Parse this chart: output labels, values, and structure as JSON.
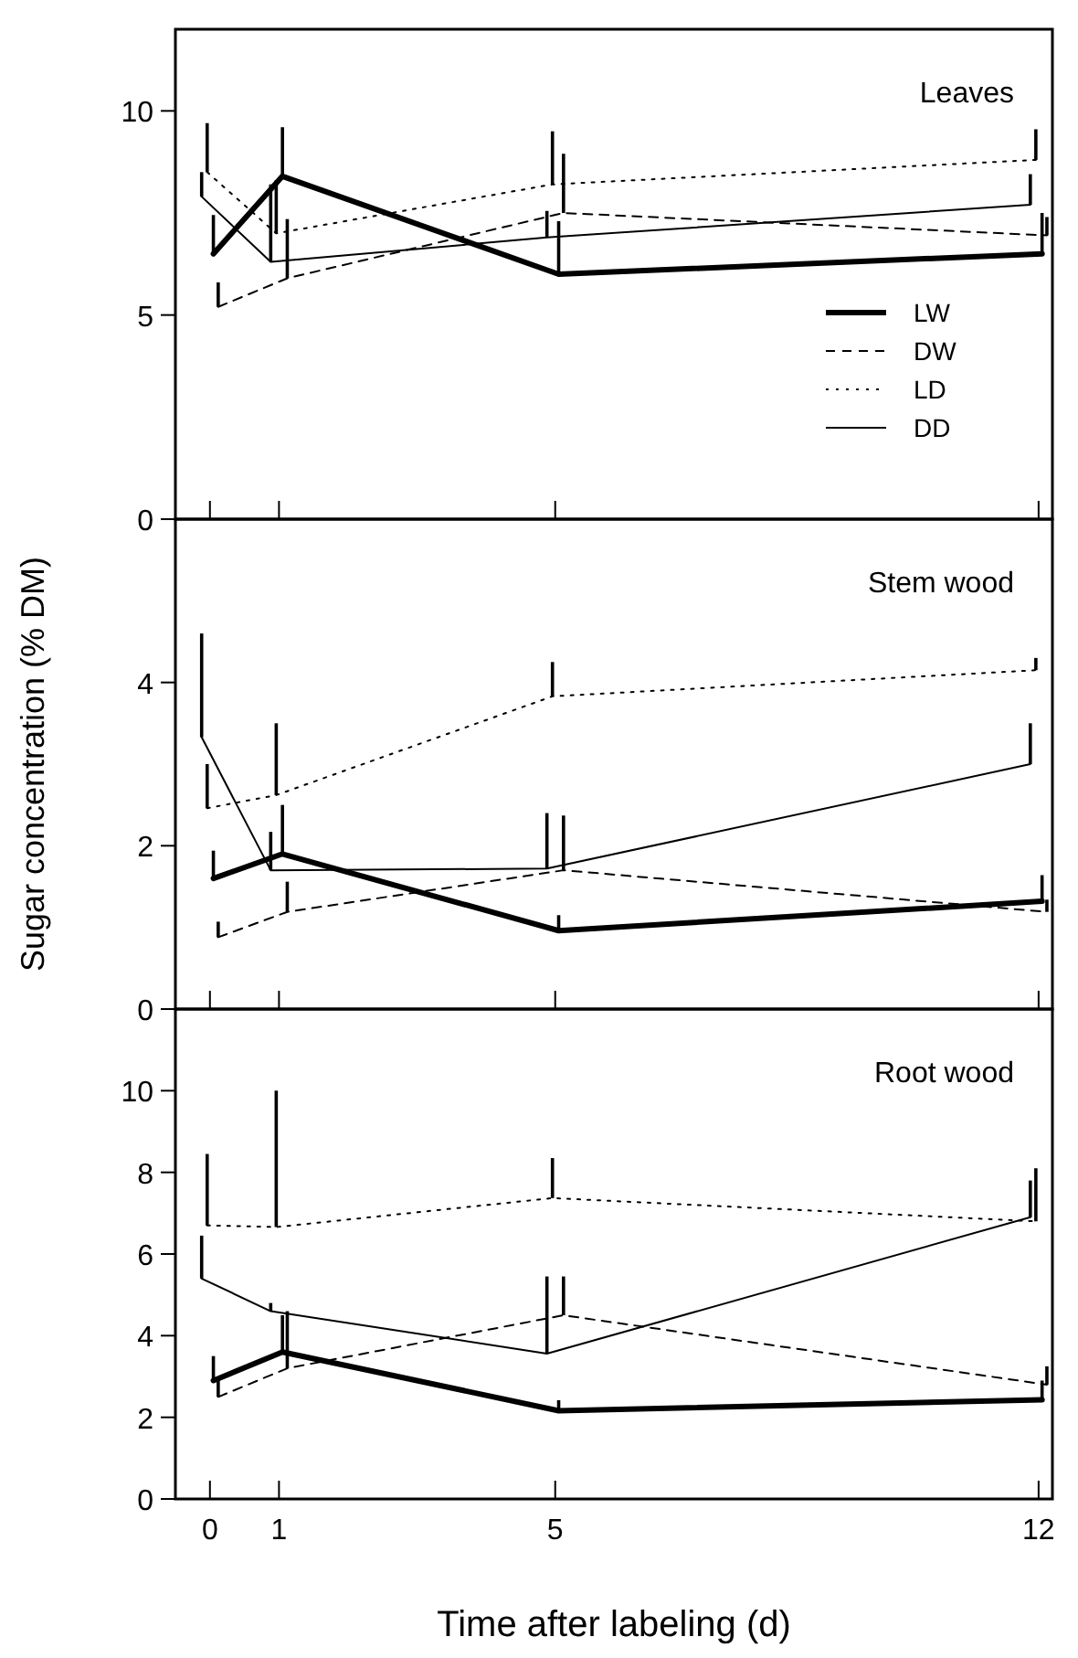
{
  "chart_data": [
    {
      "type": "line",
      "title": "Leaves",
      "xlim": [
        -0.5,
        12.2
      ],
      "xticks": [
        {
          "value": 0,
          "label": null
        },
        {
          "value": 1,
          "label": null
        },
        {
          "value": 5,
          "label": null
        },
        {
          "value": 12,
          "label": null
        }
      ],
      "ylim": [
        0,
        12
      ],
      "yticks": [
        0,
        5,
        10
      ],
      "tick_labels": "y",
      "legend": "right",
      "marker": "none",
      "series": [
        {
          "name": "LW",
          "color": "#000000",
          "line_style": "solid",
          "x": [
            0.05,
            1.05,
            5.05,
            12.05
          ],
          "values": [
            6.5,
            8.4,
            6.0,
            6.5
          ],
          "errors": [
            [
              6.5,
              7.45
            ],
            [
              8.4,
              9.6
            ],
            [
              6.0,
              7.3
            ],
            [
              6.5,
              7.5
            ]
          ]
        },
        {
          "name": "DW",
          "color": "#000000",
          "line_style": "dashed",
          "x": [
            0.12,
            1.12,
            5.12,
            12.12
          ],
          "values": [
            5.2,
            5.9,
            7.5,
            6.95
          ],
          "errors": [
            [
              5.2,
              5.8
            ],
            [
              5.9,
              7.35
            ],
            [
              7.5,
              8.95
            ],
            [
              6.95,
              7.4
            ]
          ]
        },
        {
          "name": "LD",
          "color": "#000000",
          "line_style": "dotted",
          "x": [
            -0.04,
            0.96,
            4.96,
            11.96
          ],
          "values": [
            8.5,
            7.0,
            8.2,
            8.8
          ],
          "errors": [
            [
              8.5,
              9.7
            ],
            [
              7.0,
              8.3
            ],
            [
              8.2,
              9.5
            ],
            [
              8.8,
              9.55
            ]
          ]
        },
        {
          "name": "DD",
          "color": "#000000",
          "line_style": "solid",
          "x": [
            -0.12,
            0.88,
            4.88,
            11.88
          ],
          "values": [
            7.9,
            6.3,
            6.9,
            7.7
          ],
          "errors": [
            [
              7.9,
              8.5
            ],
            [
              6.3,
              8.2
            ],
            [
              6.9,
              7.55
            ],
            [
              7.7,
              8.45
            ]
          ]
        }
      ]
    },
    {
      "type": "line",
      "title": "Stem wood",
      "ylabel": "Sugar concentration (% DM)",
      "xlim": [
        -0.5,
        12.2
      ],
      "xticks": [
        {
          "value": 0,
          "label": null
        },
        {
          "value": 1,
          "label": null
        },
        {
          "value": 5,
          "label": null
        },
        {
          "value": 12,
          "label": null
        }
      ],
      "ylim": [
        0,
        6
      ],
      "yticks": [
        0,
        2,
        4
      ],
      "tick_labels": "y",
      "marker": "none",
      "series": [
        {
          "color": "#000000",
          "line_style": "solid",
          "x": [
            0.05,
            1.05,
            5.05,
            12.05
          ],
          "values": [
            1.6,
            1.9,
            0.96,
            1.32
          ],
          "errors": [
            [
              1.6,
              1.94
            ],
            [
              1.9,
              2.5
            ],
            [
              0.96,
              1.15
            ],
            [
              1.32,
              1.64
            ]
          ]
        },
        {
          "color": "#000000",
          "line_style": "dashed",
          "x": [
            0.12,
            1.12,
            5.12,
            12.12
          ],
          "values": [
            0.88,
            1.19,
            1.7,
            1.19
          ],
          "errors": [
            [
              0.88,
              1.07
            ],
            [
              1.19,
              1.56
            ],
            [
              1.7,
              2.37
            ],
            [
              1.19,
              1.34
            ]
          ]
        },
        {
          "color": "#000000",
          "line_style": "dotted",
          "x": [
            -0.04,
            0.96,
            4.96,
            11.96
          ],
          "values": [
            2.46,
            2.62,
            3.83,
            4.15
          ],
          "errors": [
            [
              2.46,
              3.0
            ],
            [
              2.62,
              3.5
            ],
            [
              3.83,
              4.25
            ],
            [
              4.15,
              4.3
            ]
          ]
        },
        {
          "color": "#000000",
          "line_style": "solid",
          "x": [
            -0.12,
            0.88,
            4.88,
            11.88
          ],
          "values": [
            3.33,
            1.7,
            1.72,
            3.0
          ],
          "errors": [
            [
              3.33,
              4.6
            ],
            [
              1.7,
              2.17
            ],
            [
              1.72,
              2.4
            ],
            [
              3.0,
              3.5
            ]
          ]
        }
      ]
    },
    {
      "type": "line",
      "title": "Root wood",
      "xlabel": "Time after labeling (d)",
      "xlim": [
        -0.5,
        12.2
      ],
      "xticks": [
        0,
        1,
        5,
        12
      ],
      "ylim": [
        0,
        12
      ],
      "yticks": [
        0,
        2,
        4,
        6,
        8,
        10
      ],
      "marker": "none",
      "series": [
        {
          "color": "#000000",
          "line_style": "solid",
          "x": [
            0.05,
            1.05,
            5.05,
            12.05
          ],
          "values": [
            2.9,
            3.6,
            2.16,
            2.43
          ],
          "errors": [
            [
              2.9,
              3.5
            ],
            [
              3.6,
              4.5
            ],
            [
              2.16,
              2.42
            ],
            [
              2.43,
              2.9
            ]
          ]
        },
        {
          "color": "#000000",
          "line_style": "dashed",
          "x": [
            0.12,
            1.12,
            5.12,
            12.12
          ],
          "values": [
            2.5,
            3.2,
            4.5,
            2.8
          ],
          "errors": [
            [
              2.5,
              2.9
            ],
            [
              3.2,
              4.6
            ],
            [
              4.5,
              5.45
            ],
            [
              2.8,
              3.25
            ]
          ]
        },
        {
          "color": "#000000",
          "line_style": "dotted",
          "x": [
            -0.04,
            0.96,
            4.96,
            11.96
          ],
          "values": [
            6.7,
            6.66,
            7.37,
            6.8
          ],
          "errors": [
            [
              6.7,
              8.45
            ],
            [
              6.66,
              10.0
            ],
            [
              7.37,
              8.35
            ],
            [
              6.8,
              8.1
            ]
          ]
        },
        {
          "color": "#000000",
          "line_style": "solid",
          "x": [
            -0.12,
            0.88,
            4.88,
            11.88
          ],
          "values": [
            5.4,
            4.6,
            3.56,
            6.9
          ],
          "errors": [
            [
              5.4,
              6.45
            ],
            [
              4.6,
              4.8
            ],
            [
              3.56,
              5.45
            ],
            [
              6.9,
              7.8
            ]
          ]
        }
      ]
    }
  ]
}
